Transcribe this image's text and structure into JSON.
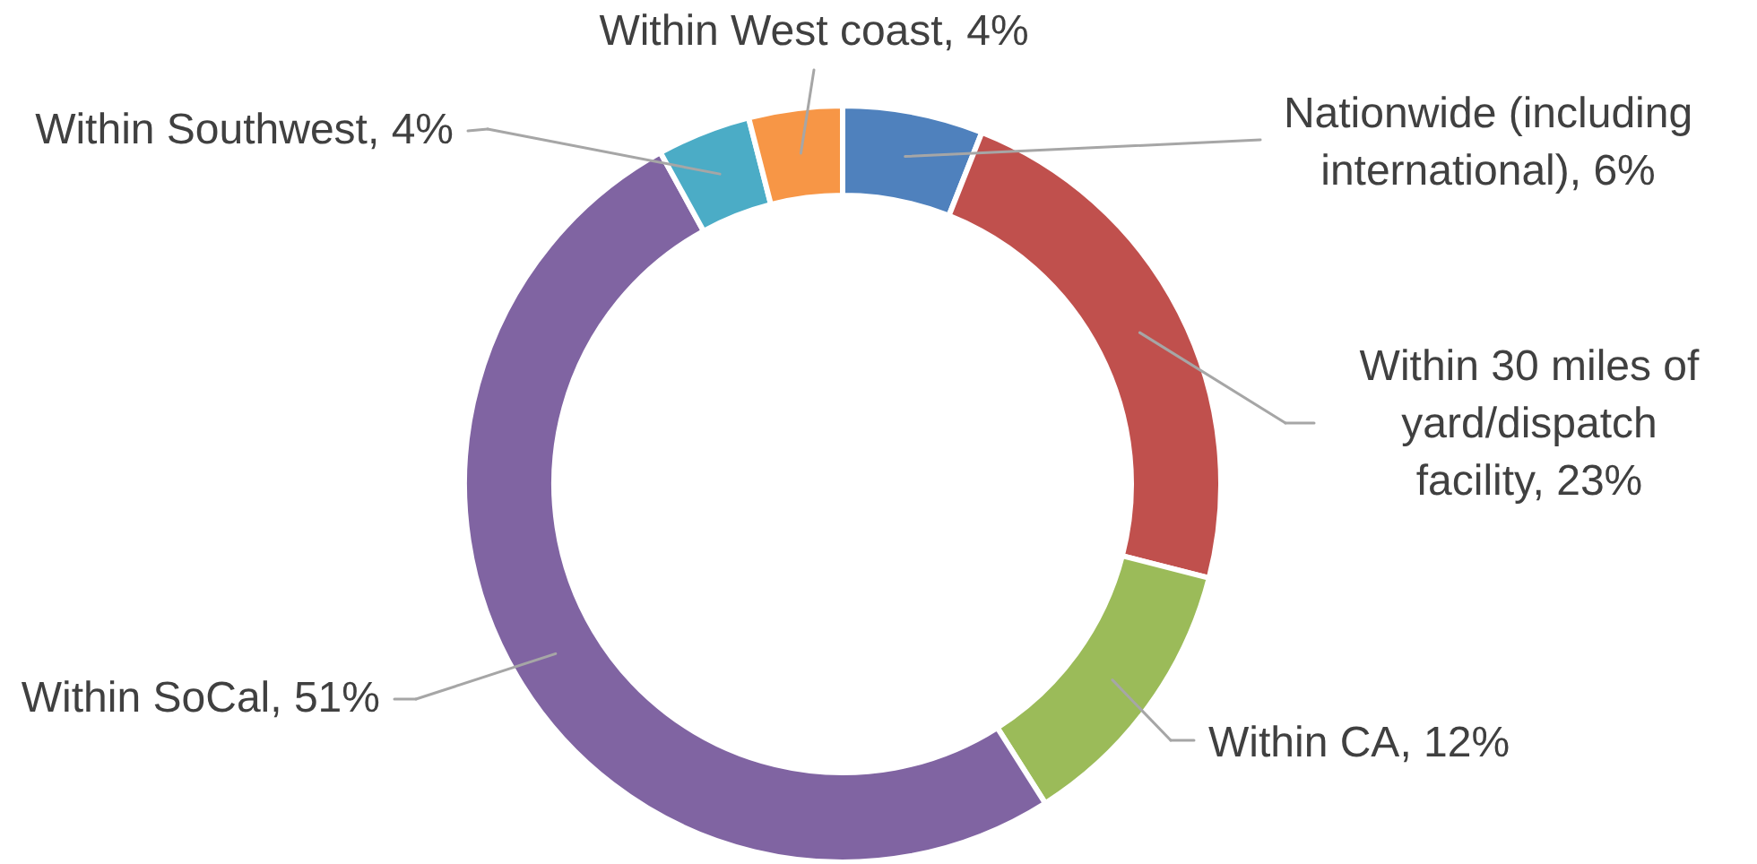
{
  "chart_data": {
    "type": "donut",
    "categories": [
      "Nationwide (including international)",
      "Within 30 miles of yard/dispatch facility",
      "Within CA",
      "Within SoCal",
      "Within Southwest",
      "Within West coast"
    ],
    "values": [
      6,
      23,
      12,
      51,
      4,
      4
    ],
    "value_labels": [
      "6%",
      "23%",
      "12%",
      "51%",
      "4%",
      "4%"
    ],
    "colors": [
      "#4f81bd",
      "#c0504d",
      "#9bbb59",
      "#8064a2",
      "#4bacc6",
      "#f79646"
    ]
  }
}
